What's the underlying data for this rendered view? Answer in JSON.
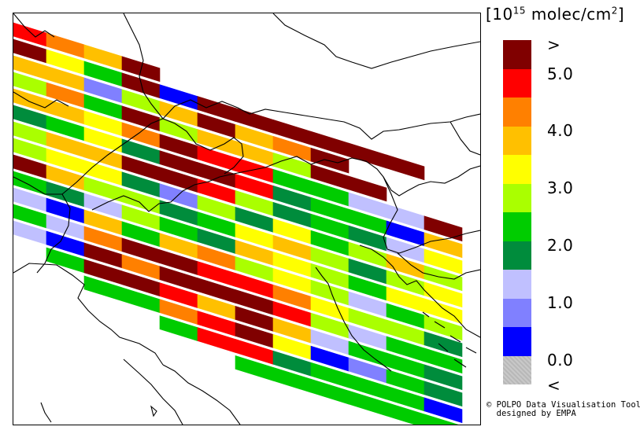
{
  "legend": {
    "unit_prefix": "[10",
    "unit_exponent": "15",
    "unit_suffix": " molec/cm",
    "unit_power": "2",
    "unit_close": "]",
    "labels": [
      ">",
      "5.0",
      "4.0",
      "3.0",
      "2.0",
      "1.0",
      "0.0",
      "<"
    ],
    "colors": [
      "#800000",
      "#ff0000",
      "#ff8000",
      "#ffc000",
      "#ffff00",
      "#aaff00",
      "#00cc00",
      "#008c3c",
      "#c0c0ff",
      "#8080ff",
      "#0000ff",
      "#c0c0c0"
    ]
  },
  "credit": {
    "line1": "© POLPO Data Visualisation Tool",
    "line2": "  designed by EMPA"
  },
  "swaths": [
    {
      "cells": [
        1,
        2,
        3,
        0,
        null,
        null,
        null,
        null,
        null,
        null,
        null,
        null
      ]
    },
    {
      "cells": [
        0,
        4,
        6,
        0,
        10,
        0,
        0,
        0,
        0,
        0,
        0,
        null
      ]
    },
    {
      "cells": [
        3,
        3,
        9,
        5,
        3,
        0,
        3,
        2,
        0,
        null,
        null,
        null
      ]
    },
    {
      "cells": [
        5,
        2,
        6,
        0,
        5,
        3,
        3,
        5,
        0,
        0,
        null,
        null
      ]
    },
    {
      "cells": [
        3,
        3,
        4,
        2,
        0,
        1,
        1,
        6,
        6,
        8,
        8,
        0
      ]
    },
    {
      "cells": [
        7,
        6,
        4,
        7,
        0,
        0,
        1,
        7,
        6,
        6,
        10,
        3
      ]
    },
    {
      "cells": [
        5,
        3,
        3,
        0,
        0,
        1,
        5,
        7,
        6,
        7,
        8,
        4
      ]
    },
    {
      "cells": [
        5,
        4,
        4,
        7,
        9,
        5,
        7,
        4,
        6,
        5,
        3,
        5
      ]
    },
    {
      "cells": [
        0,
        3,
        5,
        5,
        7,
        6,
        4,
        3,
        5,
        7,
        5,
        4
      ]
    },
    {
      "cells": [
        6,
        7,
        8,
        5,
        6,
        7,
        3,
        4,
        5,
        6,
        4,
        4
      ]
    },
    {
      "cells": [
        8,
        10,
        3,
        6,
        3,
        2,
        5,
        4,
        5,
        8,
        6,
        5
      ]
    },
    {
      "cells": [
        6,
        8,
        2,
        0,
        0,
        1,
        1,
        2,
        4,
        5,
        5,
        7
      ]
    },
    {
      "cells": [
        8,
        10,
        0,
        2,
        0,
        0,
        0,
        1,
        5,
        8,
        6,
        6
      ]
    },
    {
      "cells": [
        null,
        6,
        0,
        0,
        1,
        3,
        0,
        3,
        8,
        6,
        6,
        7
      ]
    },
    {
      "cells": [
        null,
        null,
        6,
        6,
        2,
        1,
        0,
        4,
        10,
        9,
        6,
        7
      ]
    },
    {
      "cells": [
        null,
        null,
        null,
        null,
        6,
        1,
        1,
        7,
        6,
        6,
        6,
        10
      ]
    },
    {
      "cells": [
        null,
        null,
        null,
        null,
        null,
        null,
        6,
        6,
        6,
        6,
        6,
        6
      ]
    }
  ]
}
